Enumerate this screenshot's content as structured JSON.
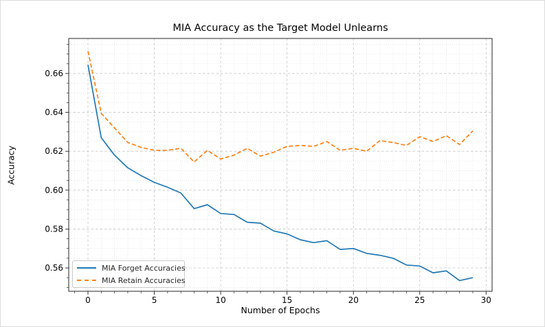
{
  "figure": {
    "title": "MIA Accuracy as the Target Model Unlearns",
    "xlabel": "Number of Epochs",
    "ylabel": "Accuracy"
  },
  "chart_data": {
    "type": "line",
    "title": "MIA Accuracy as the Target Model Unlearns",
    "xlabel": "Number of Epochs",
    "ylabel": "Accuracy",
    "x": [
      0,
      1,
      2,
      3,
      4,
      5,
      6,
      7,
      8,
      9,
      10,
      11,
      12,
      13,
      14,
      15,
      16,
      17,
      18,
      19,
      20,
      21,
      22,
      23,
      24,
      25,
      26,
      27,
      28,
      29
    ],
    "series": [
      {
        "name": "MIA Forget Accuracies",
        "color": "#1f77b4",
        "style": "solid",
        "values": [
          0.6645,
          0.627,
          0.618,
          0.6115,
          0.6075,
          0.604,
          0.6015,
          0.5985,
          0.5905,
          0.5925,
          0.588,
          0.5875,
          0.5835,
          0.583,
          0.579,
          0.5775,
          0.5745,
          0.573,
          0.574,
          0.5695,
          0.57,
          0.5675,
          0.5665,
          0.565,
          0.5615,
          0.561,
          0.5575,
          0.5585,
          0.5535,
          0.555
        ]
      },
      {
        "name": "MIA Retain Accuracies",
        "color": "#ff7f0e",
        "style": "dashed",
        "values": [
          0.6715,
          0.6395,
          0.632,
          0.6245,
          0.622,
          0.6205,
          0.6205,
          0.6215,
          0.6145,
          0.6205,
          0.616,
          0.618,
          0.6215,
          0.6175,
          0.6195,
          0.6225,
          0.623,
          0.6225,
          0.625,
          0.6205,
          0.6215,
          0.62,
          0.6255,
          0.6245,
          0.623,
          0.6275,
          0.625,
          0.628,
          0.6235,
          0.6305
        ]
      }
    ],
    "xlim": [
      -1.45,
      30.45
    ],
    "ylim": [
      0.548,
      0.678
    ],
    "x_ticks": [
      0,
      5,
      10,
      15,
      20,
      25,
      30
    ],
    "y_ticks": [
      0.56,
      0.58,
      0.6,
      0.62,
      0.64,
      0.66
    ],
    "x_minor_step": 1,
    "y_minor_step": 0.005,
    "grid": true,
    "legend_position": "lower left",
    "colors": {
      "forget_line": "#1f77b4",
      "retain_line": "#ff7f0e",
      "grid_major": "#c6c6c6",
      "grid_minor": "#dedede",
      "spine": "#262626",
      "text": "#000000"
    }
  }
}
